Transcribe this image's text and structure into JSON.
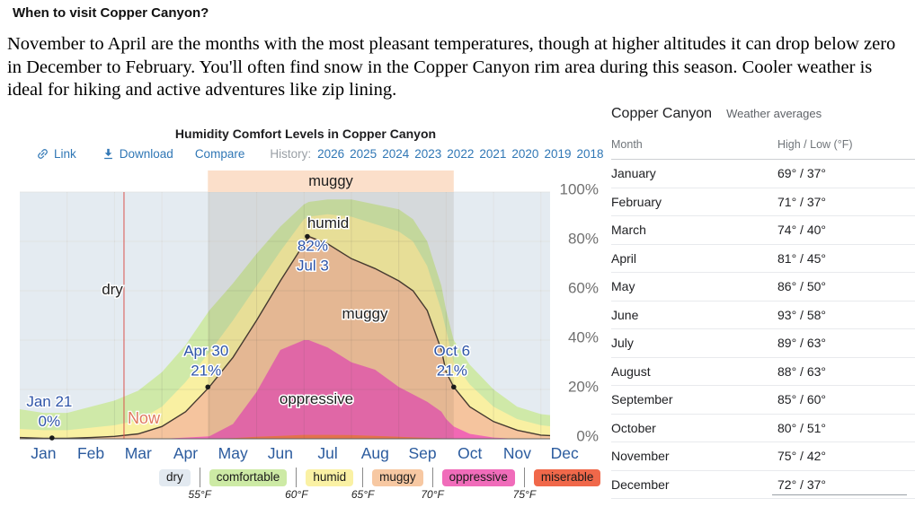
{
  "page": {
    "heading": "When to visit Copper Canyon?",
    "intro": "November to April are the months with the most pleasant temperatures, though at higher altitudes it can drop below zero in December to February.  You'll often find snow in the Copper Canyon rim area during this season. Cooler weather is ideal for hiking and active adventures like zip lining."
  },
  "chart": {
    "title": "Humidity Comfort Levels in Copper Canyon",
    "toolbar": {
      "link_label": "Link",
      "download_label": "Download",
      "compare_label": "Compare",
      "history_label": "History:",
      "years": [
        "2026",
        "2025",
        "2024",
        "2023",
        "2022",
        "2021",
        "2020",
        "2019",
        "2018"
      ]
    }
  },
  "chart_data": {
    "type": "area",
    "title": "Humidity Comfort Levels in Copper Canyon",
    "x_months": [
      "Jan",
      "Feb",
      "Mar",
      "Apr",
      "May",
      "Jun",
      "Jul",
      "Aug",
      "Sep",
      "Oct",
      "Nov",
      "Dec"
    ],
    "y_ticks": [
      "0%",
      "20%",
      "40%",
      "60%",
      "80%",
      "100%"
    ],
    "ylim": [
      0,
      100
    ],
    "grid": true,
    "x": [
      0,
      0.5,
      1,
      1.5,
      2,
      2.5,
      3,
      3.5,
      4,
      4.5,
      5,
      5.5,
      6,
      6.1,
      6.5,
      7,
      7.5,
      8,
      8.3,
      8.6,
      8.9,
      9,
      9.16,
      9.5,
      10,
      10.5,
      11,
      11.5,
      12
    ],
    "series": [
      {
        "name": "comfortable_top",
        "color": "#cfe9a8",
        "values": [
          12,
          10.5,
          10.5,
          13,
          15.5,
          19.5,
          27,
          38,
          52,
          63,
          75,
          86,
          95,
          96,
          97,
          97,
          95,
          93,
          89,
          80,
          62,
          52,
          40,
          30,
          20,
          13,
          10,
          9,
          8.5
        ]
      },
      {
        "name": "humid_top",
        "color": "#f9f0a2",
        "values": [
          4,
          3.5,
          3.5,
          4.5,
          5.5,
          7.5,
          13,
          23,
          35,
          48,
          62,
          76,
          89,
          90,
          91,
          90,
          87,
          84,
          80,
          70,
          52,
          44,
          31,
          22,
          13,
          8,
          5.5,
          4.5,
          4
        ]
      },
      {
        "name": "muggy_or_worse",
        "color": "#f5c49e",
        "values": [
          0.5,
          0.2,
          0.2,
          0.5,
          1,
          2,
          5,
          11,
          21,
          33,
          48,
          64,
          79,
          82,
          79,
          73,
          69,
          64,
          60,
          52,
          36,
          27,
          21,
          13,
          7,
          3.5,
          1.5,
          1,
          0.8
        ]
      },
      {
        "name": "oppressive",
        "color": "#f168b4",
        "values": [
          0,
          0,
          0,
          0,
          0,
          0,
          0,
          0.5,
          1,
          6,
          19,
          36,
          40,
          40,
          37,
          31,
          28,
          21,
          18,
          15,
          11,
          8,
          5,
          2,
          0.5,
          0,
          0,
          0,
          0
        ]
      },
      {
        "name": "miserable",
        "color": "#f4744c",
        "values": [
          0,
          0,
          0,
          0,
          0,
          0,
          0,
          0,
          0,
          0.3,
          0.8,
          1.2,
          1.6,
          1.6,
          1.6,
          1.5,
          1.2,
          0.8,
          0.6,
          0.4,
          0.2,
          0,
          0,
          0,
          0,
          0,
          0,
          0,
          0
        ]
      }
    ],
    "dry_fill_color": "#e4ebf1",
    "line_color": "#453a30",
    "annotations": [
      {
        "lines": [
          "Jan 21",
          "0%"
        ],
        "x": 0.68,
        "value": 0
      },
      {
        "lines": [
          "Apr 30",
          "21%"
        ],
        "x": 3.97,
        "value": 21
      },
      {
        "lines": [
          "82%",
          "Jul 3"
        ],
        "x": 6.07,
        "value": 82
      },
      {
        "lines": [
          "Oct 6",
          "21%"
        ],
        "x": 9.16,
        "value": 21
      }
    ],
    "region_labels": [
      {
        "text": "dry"
      },
      {
        "text": "humid"
      },
      {
        "text": "muggy"
      },
      {
        "text": "oppressive"
      }
    ],
    "season_band": {
      "label": "muggy",
      "x_start": 3.97,
      "x_end": 9.16,
      "band_color": "#fbdfca",
      "overlay_color": "rgba(115,100,75,0.13)"
    },
    "now_marker": {
      "label": "Now",
      "x": 2.2,
      "line_color": "#d9544d",
      "text_color": "#e0795e"
    },
    "legend": [
      {
        "label": "dry",
        "color": "#e2e9f0"
      },
      {
        "label": "comfortable",
        "color": "#cdeaa5"
      },
      {
        "label": "humid",
        "color": "#faf1a4"
      },
      {
        "label": "muggy",
        "color": "#f7c8a2"
      },
      {
        "label": "oppressive",
        "color": "#f06cba"
      },
      {
        "label": "miserable",
        "color": "#f0684a"
      }
    ],
    "legend_temps": [
      "55°F",
      "60°F",
      "65°F",
      "70°F",
      "75°F"
    ]
  },
  "table": {
    "title": "Copper Canyon",
    "subtitle": "Weather averages",
    "columns": [
      "Month",
      "High / Low (°F)"
    ],
    "rows": [
      [
        "January",
        "69° / 37°"
      ],
      [
        "February",
        "71° / 37°"
      ],
      [
        "March",
        "74° / 40°"
      ],
      [
        "April",
        "81° / 45°"
      ],
      [
        "May",
        "86° / 50°"
      ],
      [
        "June",
        "93° / 58°"
      ],
      [
        "July",
        "89° / 63°"
      ],
      [
        "August",
        "88° / 63°"
      ],
      [
        "September",
        "85° / 60°"
      ],
      [
        "October",
        "80° / 51°"
      ],
      [
        "November",
        "75° / 42°"
      ],
      [
        "December",
        "72° / 37°"
      ]
    ]
  }
}
